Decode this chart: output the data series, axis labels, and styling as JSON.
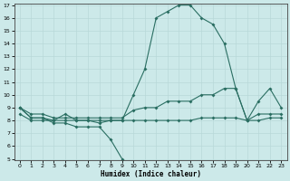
{
  "xlabel": "Humidex (Indice chaleur)",
  "x": [
    0,
    1,
    2,
    3,
    4,
    5,
    6,
    7,
    8,
    9,
    10,
    11,
    12,
    13,
    14,
    15,
    16,
    17,
    18,
    19,
    20,
    21,
    22,
    23
  ],
  "line1": [
    9,
    8.2,
    8.2,
    8,
    8.5,
    8,
    8,
    7.8,
    8,
    8,
    10,
    12,
    16,
    16.5,
    17,
    17,
    16,
    15.5,
    14,
    10.5,
    8,
    9.5,
    10.5,
    9
  ],
  "line2": [
    9,
    8.2,
    8.2,
    7.8,
    7.8,
    7.5,
    7.5,
    7.5,
    6.5,
    5,
    null,
    null,
    null,
    null,
    null,
    null,
    null,
    null,
    null,
    null,
    null,
    null,
    null,
    null
  ],
  "line3": [
    9,
    8.5,
    8.5,
    8.2,
    8.2,
    8.2,
    8.2,
    8.2,
    8.2,
    8.2,
    8.8,
    9,
    9,
    9.5,
    9.5,
    9.5,
    10,
    10,
    10.5,
    10.5,
    8,
    8.5,
    8.5,
    8.5
  ],
  "line4": [
    8.5,
    8,
    8,
    8,
    8,
    8,
    8,
    8,
    8,
    8,
    8,
    8,
    8,
    8,
    8,
    8,
    8.2,
    8.2,
    8.2,
    8.2,
    8,
    8,
    8.2,
    8.2
  ],
  "color": "#2a6e62",
  "bg_color": "#cce9e9",
  "ylim": [
    5,
    17
  ],
  "xlim": [
    -0.5,
    23.5
  ],
  "yticks": [
    5,
    6,
    7,
    8,
    9,
    10,
    11,
    12,
    13,
    14,
    15,
    16,
    17
  ],
  "xticks": [
    0,
    1,
    2,
    3,
    4,
    5,
    6,
    7,
    8,
    9,
    10,
    11,
    12,
    13,
    14,
    15,
    16,
    17,
    18,
    19,
    20,
    21,
    22,
    23
  ]
}
